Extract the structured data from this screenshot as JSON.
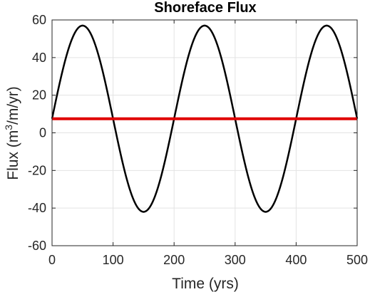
{
  "chart_data": {
    "type": "line",
    "title": "Shoreface Flux",
    "xlabel": "Time (yrs)",
    "ylabel": {
      "prefix": "Flux (m",
      "superscript": "3",
      "suffix": "/m/yr)"
    },
    "xlim": [
      0,
      500
    ],
    "ylim": [
      -60,
      60
    ],
    "xticks": [
      0,
      100,
      200,
      300,
      400,
      500
    ],
    "yticks": [
      -60,
      -40,
      -20,
      0,
      20,
      40,
      60
    ],
    "grid": true,
    "box": true,
    "series": [
      {
        "style": "sine",
        "color": "#000000",
        "mean": 7.5,
        "amplitude": 49.5,
        "period": 200,
        "x": [
          0,
          50,
          100,
          150,
          200,
          250,
          300,
          350,
          400,
          450,
          500
        ],
        "y": [
          7.5,
          57,
          7.5,
          -42,
          7.5,
          57,
          7.5,
          -42,
          7.5,
          57,
          7.5
        ]
      },
      {
        "style": "line",
        "color": "#e00000",
        "x": [
          0,
          500
        ],
        "y": [
          7.5,
          7.5
        ]
      }
    ]
  }
}
